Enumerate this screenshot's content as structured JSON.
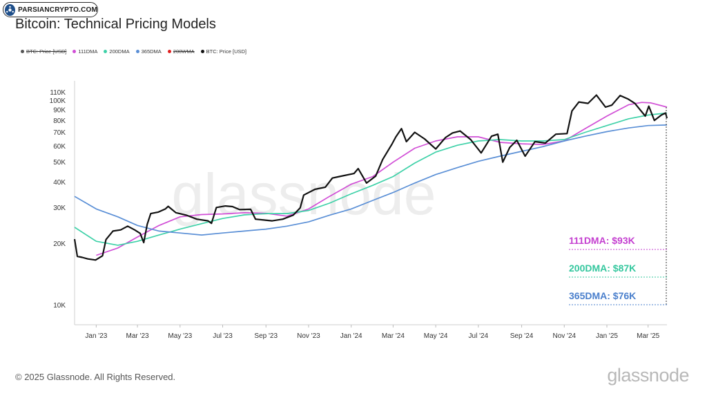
{
  "badge": {
    "text": "PARSIANCRYPTO.COM",
    "icon": "parsiancrypto-logo-icon"
  },
  "chart_data": {
    "type": "line",
    "title": "Bitcoin: Technical Pricing Models",
    "legend": [
      {
        "label": "BTC: Price [USD]",
        "color": "#555555",
        "struck": true
      },
      {
        "label": "111DMA",
        "color": "#d14ed6",
        "struck": false
      },
      {
        "label": "200DMA",
        "color": "#3ed1a8",
        "struck": false
      },
      {
        "label": "365DMA",
        "color": "#5a8fd6",
        "struck": false
      },
      {
        "label": "200WMA",
        "color": "#e02020",
        "struck": true
      },
      {
        "label": "BTC: Price [USD]",
        "color": "#111111",
        "struck": false
      }
    ],
    "legend_position": "top-left",
    "grid": false,
    "y_scale": "log",
    "ylim": [
      8000,
      125000
    ],
    "xlim": [
      "2022-12-01",
      "2025-03-28"
    ],
    "y_ticks": [
      {
        "value": 10000,
        "label": "10K"
      },
      {
        "value": 20000,
        "label": "20K"
      },
      {
        "value": 30000,
        "label": "30K"
      },
      {
        "value": 40000,
        "label": "40K"
      },
      {
        "value": 50000,
        "label": "50K"
      },
      {
        "value": 60000,
        "label": "60K"
      },
      {
        "value": 70000,
        "label": "70K"
      },
      {
        "value": 80000,
        "label": "80K"
      },
      {
        "value": 90000,
        "label": "90K"
      },
      {
        "value": 100000,
        "label": "100K"
      },
      {
        "value": 110000,
        "label": "110K"
      }
    ],
    "x_ticks": [
      {
        "date": "2023-01-01",
        "label": "Jan '23"
      },
      {
        "date": "2023-03-01",
        "label": "Mar '23"
      },
      {
        "date": "2023-05-01",
        "label": "May '23"
      },
      {
        "date": "2023-07-01",
        "label": "Jul '23"
      },
      {
        "date": "2023-09-01",
        "label": "Sep '23"
      },
      {
        "date": "2023-11-01",
        "label": "Nov '23"
      },
      {
        "date": "2024-01-01",
        "label": "Jan '24"
      },
      {
        "date": "2024-03-01",
        "label": "Mar '24"
      },
      {
        "date": "2024-05-01",
        "label": "May '24"
      },
      {
        "date": "2024-07-01",
        "label": "Jul '24"
      },
      {
        "date": "2024-09-01",
        "label": "Sep '24"
      },
      {
        "date": "2024-11-01",
        "label": "Nov '24"
      },
      {
        "date": "2025-01-01",
        "label": "Jan '25"
      },
      {
        "date": "2025-03-01",
        "label": "Mar '25"
      }
    ],
    "series": [
      {
        "name": "BTC: Price [USD]",
        "color": "#111111",
        "width": 2.2,
        "points": [
          [
            "2022-12-01",
            21000
          ],
          [
            "2022-12-05",
            17300
          ],
          [
            "2022-12-12",
            17100
          ],
          [
            "2022-12-20",
            16800
          ],
          [
            "2022-12-31",
            16600
          ],
          [
            "2023-01-10",
            17400
          ],
          [
            "2023-01-15",
            20900
          ],
          [
            "2023-01-25",
            23000
          ],
          [
            "2023-02-05",
            23300
          ],
          [
            "2023-02-15",
            24300
          ],
          [
            "2023-02-25",
            23300
          ],
          [
            "2023-03-05",
            22400
          ],
          [
            "2023-03-10",
            20200
          ],
          [
            "2023-03-15",
            24800
          ],
          [
            "2023-03-20",
            28000
          ],
          [
            "2023-03-31",
            28500
          ],
          [
            "2023-04-10",
            29500
          ],
          [
            "2023-04-14",
            30400
          ],
          [
            "2023-04-25",
            28300
          ],
          [
            "2023-05-10",
            27500
          ],
          [
            "2023-05-25",
            26300
          ],
          [
            "2023-06-10",
            25800
          ],
          [
            "2023-06-15",
            25100
          ],
          [
            "2023-06-22",
            30000
          ],
          [
            "2023-07-05",
            30500
          ],
          [
            "2023-07-15",
            30300
          ],
          [
            "2023-07-25",
            29300
          ],
          [
            "2023-08-10",
            29400
          ],
          [
            "2023-08-17",
            26300
          ],
          [
            "2023-08-31",
            26000
          ],
          [
            "2023-09-10",
            25800
          ],
          [
            "2023-09-25",
            26300
          ],
          [
            "2023-10-10",
            27500
          ],
          [
            "2023-10-20",
            29900
          ],
          [
            "2023-10-25",
            34500
          ],
          [
            "2023-11-10",
            36800
          ],
          [
            "2023-11-25",
            37700
          ],
          [
            "2023-12-05",
            41800
          ],
          [
            "2023-12-15",
            42500
          ],
          [
            "2024-01-05",
            44000
          ],
          [
            "2024-01-11",
            46500
          ],
          [
            "2024-01-23",
            39500
          ],
          [
            "2024-02-05",
            42700
          ],
          [
            "2024-02-15",
            51500
          ],
          [
            "2024-02-28",
            61000
          ],
          [
            "2024-03-05",
            66500
          ],
          [
            "2024-03-13",
            73000
          ],
          [
            "2024-03-20",
            63000
          ],
          [
            "2024-04-01",
            70000
          ],
          [
            "2024-04-15",
            65000
          ],
          [
            "2024-05-01",
            58000
          ],
          [
            "2024-05-15",
            66000
          ],
          [
            "2024-05-25",
            69500
          ],
          [
            "2024-06-05",
            71000
          ],
          [
            "2024-06-20",
            64500
          ],
          [
            "2024-07-05",
            55500
          ],
          [
            "2024-07-20",
            67000
          ],
          [
            "2024-07-29",
            68500
          ],
          [
            "2024-08-05",
            50000
          ],
          [
            "2024-08-15",
            59000
          ],
          [
            "2024-08-25",
            64000
          ],
          [
            "2024-09-06",
            53500
          ],
          [
            "2024-09-20",
            63000
          ],
          [
            "2024-10-05",
            62000
          ],
          [
            "2024-10-20",
            68500
          ],
          [
            "2024-11-05",
            69000
          ],
          [
            "2024-11-12",
            89000
          ],
          [
            "2024-11-22",
            98500
          ],
          [
            "2024-12-05",
            97000
          ],
          [
            "2024-12-17",
            106500
          ],
          [
            "2024-12-30",
            93000
          ],
          [
            "2025-01-08",
            95000
          ],
          [
            "2025-01-20",
            106000
          ],
          [
            "2025-01-31",
            102000
          ],
          [
            "2025-02-10",
            97000
          ],
          [
            "2025-02-25",
            84000
          ],
          [
            "2025-03-02",
            94000
          ],
          [
            "2025-03-10",
            80000
          ],
          [
            "2025-03-20",
            85000
          ],
          [
            "2025-03-26",
            87000
          ],
          [
            "2025-03-28",
            82000
          ]
        ]
      },
      {
        "name": "111DMA",
        "color": "#d14ed6",
        "width": 1.7,
        "points": [
          [
            "2023-01-01",
            17500
          ],
          [
            "2023-02-01",
            19000
          ],
          [
            "2023-03-01",
            21500
          ],
          [
            "2023-04-01",
            24500
          ],
          [
            "2023-05-01",
            27000
          ],
          [
            "2023-06-01",
            27700
          ],
          [
            "2023-07-01",
            27900
          ],
          [
            "2023-08-01",
            28300
          ],
          [
            "2023-09-01",
            28100
          ],
          [
            "2023-10-01",
            27200
          ],
          [
            "2023-11-01",
            29500
          ],
          [
            "2023-12-01",
            34000
          ],
          [
            "2024-01-01",
            39000
          ],
          [
            "2024-02-01",
            42500
          ],
          [
            "2024-03-01",
            50000
          ],
          [
            "2024-04-01",
            58500
          ],
          [
            "2024-05-01",
            63500
          ],
          [
            "2024-06-01",
            66500
          ],
          [
            "2024-07-01",
            66500
          ],
          [
            "2024-08-01",
            62500
          ],
          [
            "2024-09-01",
            61500
          ],
          [
            "2024-10-01",
            61000
          ],
          [
            "2024-11-01",
            63500
          ],
          [
            "2024-12-01",
            73000
          ],
          [
            "2025-01-01",
            84000
          ],
          [
            "2025-02-01",
            95500
          ],
          [
            "2025-02-20",
            98000
          ],
          [
            "2025-03-05",
            97500
          ],
          [
            "2025-03-28",
            93000
          ]
        ]
      },
      {
        "name": "200DMA",
        "color": "#3ed1a8",
        "width": 1.7,
        "points": [
          [
            "2022-12-01",
            24000
          ],
          [
            "2023-01-01",
            20500
          ],
          [
            "2023-02-01",
            19600
          ],
          [
            "2023-03-01",
            20500
          ],
          [
            "2023-04-01",
            22000
          ],
          [
            "2023-05-01",
            23500
          ],
          [
            "2023-06-01",
            25000
          ],
          [
            "2023-07-01",
            26500
          ],
          [
            "2023-08-01",
            27600
          ],
          [
            "2023-09-01",
            28000
          ],
          [
            "2023-10-01",
            28000
          ],
          [
            "2023-11-01",
            29000
          ],
          [
            "2023-12-01",
            31500
          ],
          [
            "2024-01-01",
            35000
          ],
          [
            "2024-02-01",
            38500
          ],
          [
            "2024-03-01",
            42500
          ],
          [
            "2024-04-01",
            49500
          ],
          [
            "2024-05-01",
            56000
          ],
          [
            "2024-06-01",
            60500
          ],
          [
            "2024-07-01",
            63500
          ],
          [
            "2024-08-01",
            64500
          ],
          [
            "2024-09-01",
            63500
          ],
          [
            "2024-10-01",
            63500
          ],
          [
            "2024-11-01",
            64500
          ],
          [
            "2024-12-01",
            70000
          ],
          [
            "2025-01-01",
            75500
          ],
          [
            "2025-02-01",
            81500
          ],
          [
            "2025-03-01",
            85000
          ],
          [
            "2025-03-28",
            87000
          ]
        ]
      },
      {
        "name": "365DMA",
        "color": "#5a8fd6",
        "width": 1.7,
        "points": [
          [
            "2022-12-01",
            34000
          ],
          [
            "2023-01-01",
            29500
          ],
          [
            "2023-02-01",
            27000
          ],
          [
            "2023-03-01",
            24500
          ],
          [
            "2023-04-01",
            23000
          ],
          [
            "2023-05-01",
            22500
          ],
          [
            "2023-06-01",
            22000
          ],
          [
            "2023-07-01",
            22500
          ],
          [
            "2023-08-01",
            23000
          ],
          [
            "2023-09-01",
            23500
          ],
          [
            "2023-10-01",
            24300
          ],
          [
            "2023-11-01",
            25500
          ],
          [
            "2023-12-01",
            27500
          ],
          [
            "2024-01-01",
            29500
          ],
          [
            "2024-02-01",
            32500
          ],
          [
            "2024-03-01",
            35500
          ],
          [
            "2024-04-01",
            39500
          ],
          [
            "2024-05-01",
            43500
          ],
          [
            "2024-06-01",
            47000
          ],
          [
            "2024-07-01",
            50500
          ],
          [
            "2024-08-01",
            53500
          ],
          [
            "2024-09-01",
            56500
          ],
          [
            "2024-10-01",
            59500
          ],
          [
            "2024-11-01",
            63500
          ],
          [
            "2024-12-01",
            67000
          ],
          [
            "2025-01-01",
            70500
          ],
          [
            "2025-02-01",
            73500
          ],
          [
            "2025-03-01",
            75500
          ],
          [
            "2025-03-28",
            76000
          ]
        ]
      }
    ],
    "annotations": [
      {
        "label": "111DMA: $93K",
        "color": "#c43fd0",
        "value": 93000
      },
      {
        "label": "200DMA: $87K",
        "color": "#34c79e",
        "value": 87000
      },
      {
        "label": "365DMA: $76K",
        "color": "#4a7fcc",
        "value": 76000
      }
    ]
  },
  "watermark": "glassnode",
  "footer": {
    "copyright": "© 2025 Glassnode. All Rights Reserved.",
    "brand": "glassnode"
  }
}
